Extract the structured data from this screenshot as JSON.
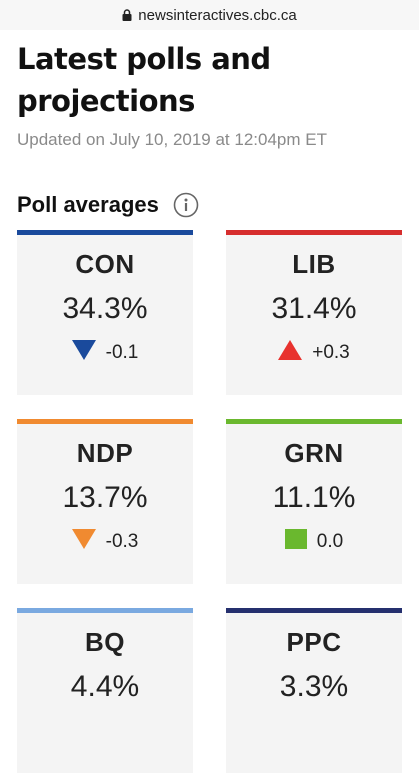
{
  "browser": {
    "url": "newsinteractives.cbc.ca"
  },
  "page": {
    "title": "Latest polls and projections",
    "updated": "Updated on July 10, 2019 at 12:04pm ET"
  },
  "poll_section": {
    "title": "Poll averages"
  },
  "parties": [
    {
      "name": "CON",
      "percent": "34.3%",
      "change": "-0.1",
      "direction": "down",
      "color": "#1a4a9c",
      "indicator_color": "#1a4a9c"
    },
    {
      "name": "LIB",
      "percent": "31.4%",
      "change": "+0.3",
      "direction": "up",
      "color": "#d62d2d",
      "indicator_color": "#e8322e"
    },
    {
      "name": "NDP",
      "percent": "13.7%",
      "change": "-0.3",
      "direction": "down",
      "color": "#f08a30",
      "indicator_color": "#f08a30"
    },
    {
      "name": "GRN",
      "percent": "11.1%",
      "change": "0.0",
      "direction": "steady",
      "color": "#6ab82e",
      "indicator_color": "#6ab82e"
    },
    {
      "name": "BQ",
      "percent": "4.4%",
      "change": "",
      "direction": "",
      "color": "#7aa9e0",
      "indicator_color": "#7aa9e0"
    },
    {
      "name": "PPC",
      "percent": "3.3%",
      "change": "",
      "direction": "",
      "color": "#25306e",
      "indicator_color": "#25306e"
    }
  ]
}
